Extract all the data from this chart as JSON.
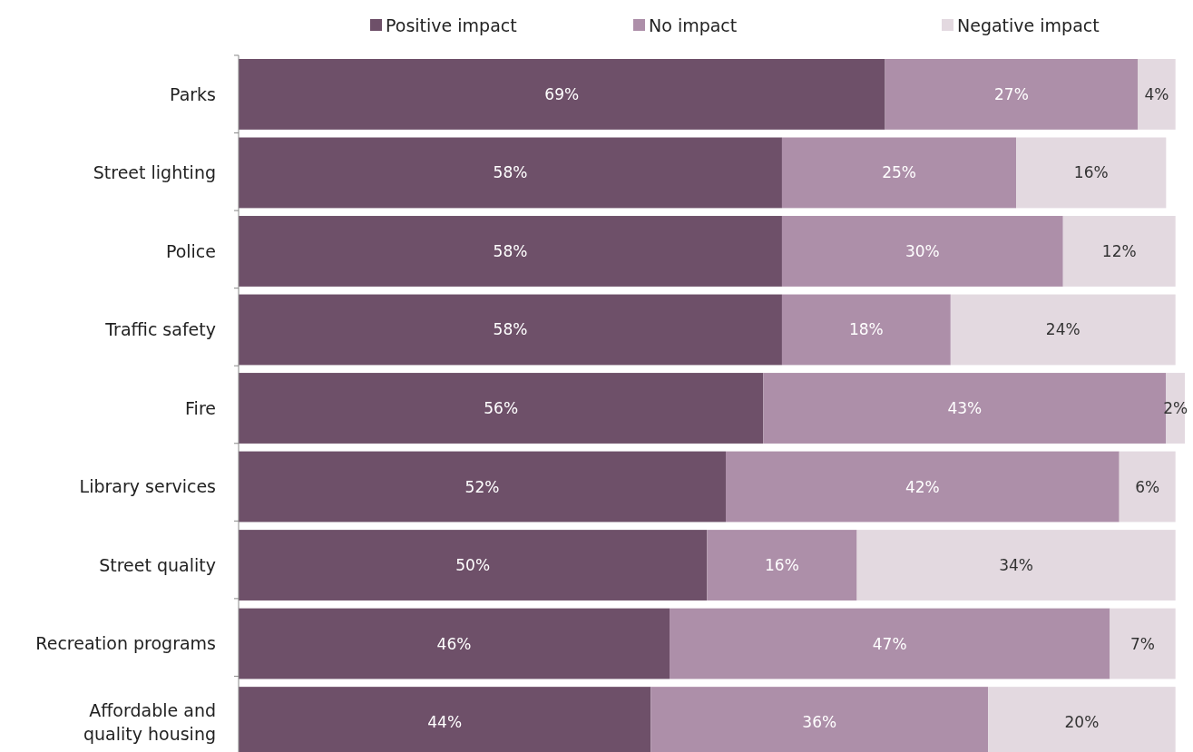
{
  "chart_data": {
    "type": "bar",
    "orientation": "horizontal",
    "stacked": true,
    "legend": "top",
    "tick_labels": "y",
    "categories": [
      "Parks",
      "Street lighting",
      "Police",
      "Traffic safety",
      "Fire",
      "Library services",
      "Street quality",
      "Recreation programs",
      "Affordable and quality housing"
    ],
    "series": [
      {
        "name": "Positive impact",
        "color": "#6e5069",
        "values": [
          69,
          58,
          58,
          58,
          56,
          52,
          50,
          46,
          44
        ],
        "value_labels": [
          "69%",
          "58%",
          "58%",
          "58%",
          "56%",
          "52%",
          "50%",
          "46%",
          "44%"
        ]
      },
      {
        "name": "No impact",
        "color": "#ad8fa9",
        "values": [
          27,
          25,
          30,
          18,
          43,
          42,
          16,
          47,
          36
        ],
        "value_labels": [
          "27%",
          "25%",
          "30%",
          "18%",
          "43%",
          "42%",
          "16%",
          "47%",
          "36%"
        ]
      },
      {
        "name": "Negative impact",
        "color": "#e3d9e0",
        "values": [
          4,
          16,
          12,
          24,
          2,
          6,
          34,
          7,
          20
        ],
        "value_labels": [
          "4%",
          "16%",
          "12%",
          "24%",
          "2%",
          "6%",
          "34%",
          "7%",
          "20%"
        ]
      }
    ]
  }
}
